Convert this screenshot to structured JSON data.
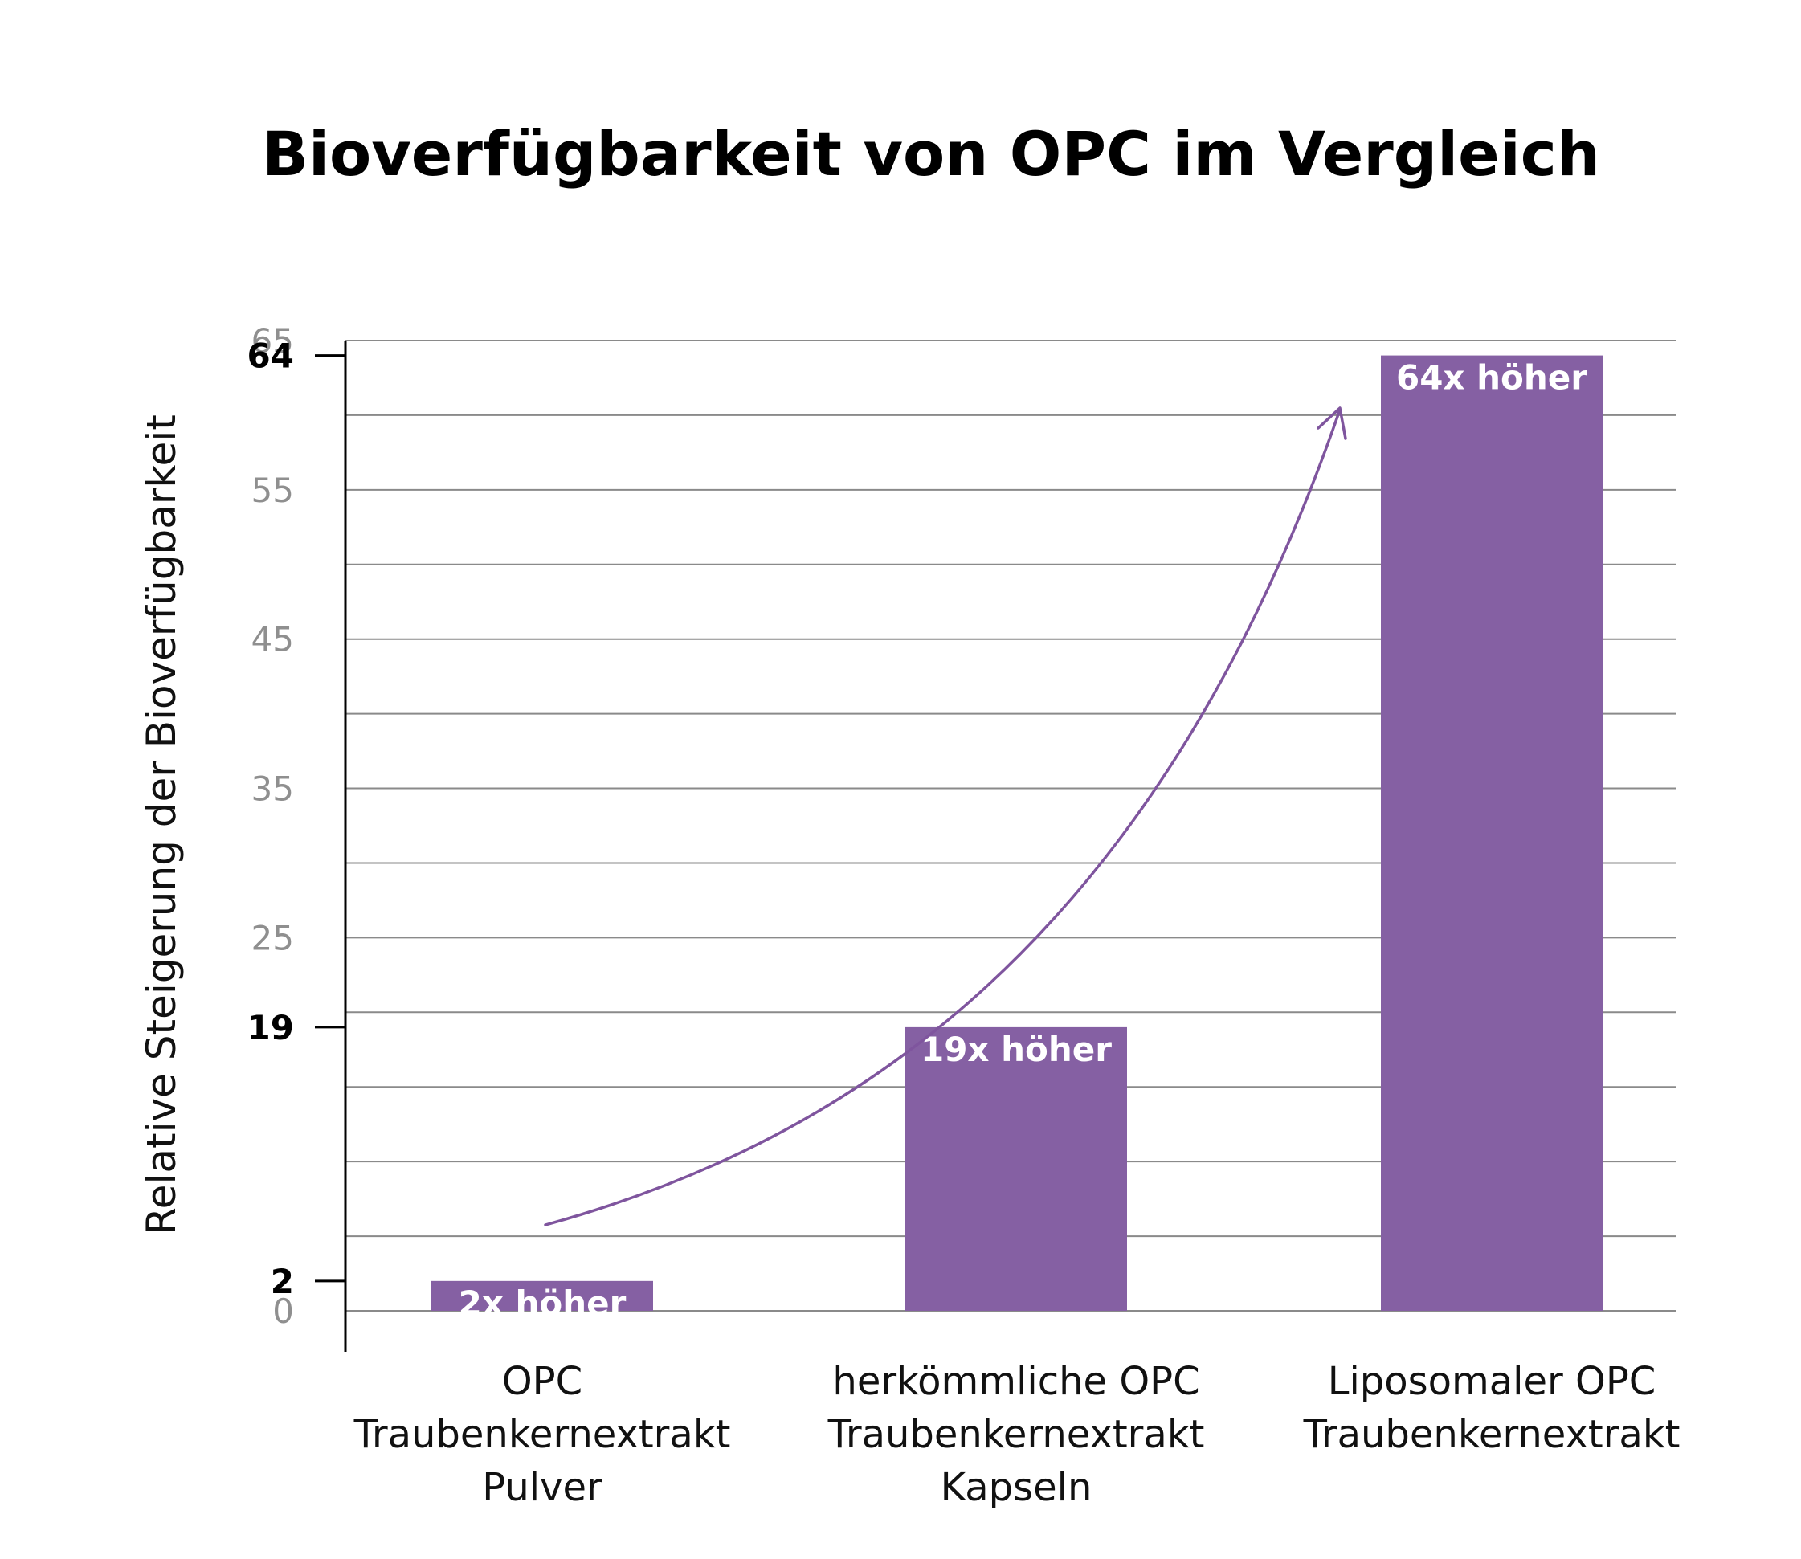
{
  "chart_data": {
    "type": "bar",
    "title": "Bioverfügbarkeit von OPC im Vergleich",
    "ylabel": "Relative Steigerung der Bioverfügbarkeit",
    "xlabel": "",
    "ylim": [
      0,
      65
    ],
    "grid": true,
    "categories": [
      [
        "OPC",
        "Traubenkernextrakt",
        "Pulver"
      ],
      [
        "herkömmliche OPC",
        "Traubenkernextrakt",
        "Kapseln"
      ],
      [
        "Liposomaler OPC",
        "Traubenkernextrakt"
      ]
    ],
    "values": [
      2,
      19,
      64
    ],
    "data_labels": [
      "2x höher",
      "19x höher",
      "64x höher"
    ],
    "y_ticks_regular": [
      "0",
      "25",
      "35",
      "45",
      "55",
      "65"
    ],
    "y_ticks_highlight": [
      "2",
      "19",
      "64"
    ],
    "gridline_values": [
      0,
      5,
      10,
      15,
      20,
      25,
      30,
      35,
      40,
      45,
      50,
      55,
      60,
      65
    ],
    "bar_color": "#8560a3",
    "arrow_color": "#7f559e",
    "grid_color": "#8a8a8a",
    "tick_color": "#8f8f8f",
    "axis_color": "#000000"
  }
}
